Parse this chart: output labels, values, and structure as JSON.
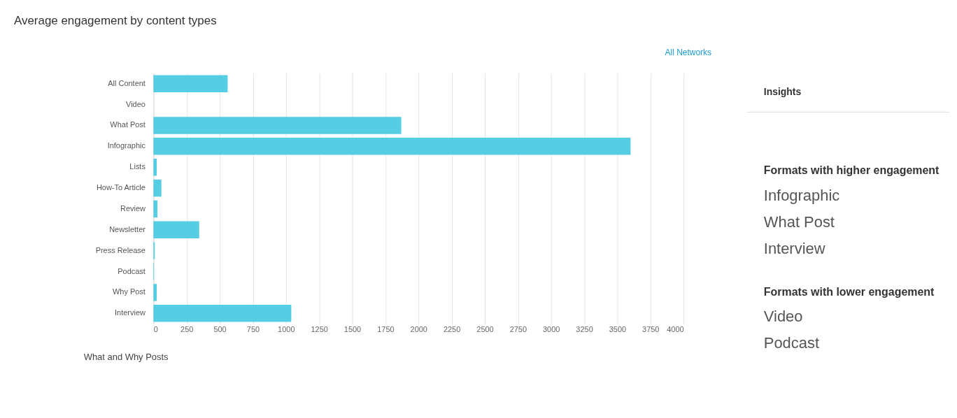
{
  "chart_data": [
    {
      "type": "bar",
      "orientation": "horizontal",
      "title": "Average engagement by content types",
      "categories": [
        "All Content",
        "Video",
        "What Post",
        "Infographic",
        "Lists",
        "How-To Article",
        "Review",
        "Newsletter",
        "Press Release",
        "Podcast",
        "Why Post",
        "Interview"
      ],
      "values": [
        560,
        0,
        1870,
        3600,
        25,
        60,
        30,
        345,
        10,
        4,
        25,
        1040
      ],
      "color": "#55cde3",
      "xlim": [
        0,
        4000
      ],
      "xticks": [
        0,
        250,
        500,
        750,
        1000,
        1250,
        1500,
        1750,
        2000,
        2250,
        2500,
        2750,
        3000,
        3250,
        3500,
        3750,
        4000
      ],
      "grid": "x",
      "annotations": [
        "All Networks",
        "What and Why Posts"
      ]
    },
    {
      "type": "other",
      "title": "Insights",
      "annotations": [
        "Formats with higher engagement",
        "Infographic",
        "What Post",
        "Interview",
        "Formats with lower engagement",
        "Video",
        "Podcast"
      ]
    }
  ]
}
